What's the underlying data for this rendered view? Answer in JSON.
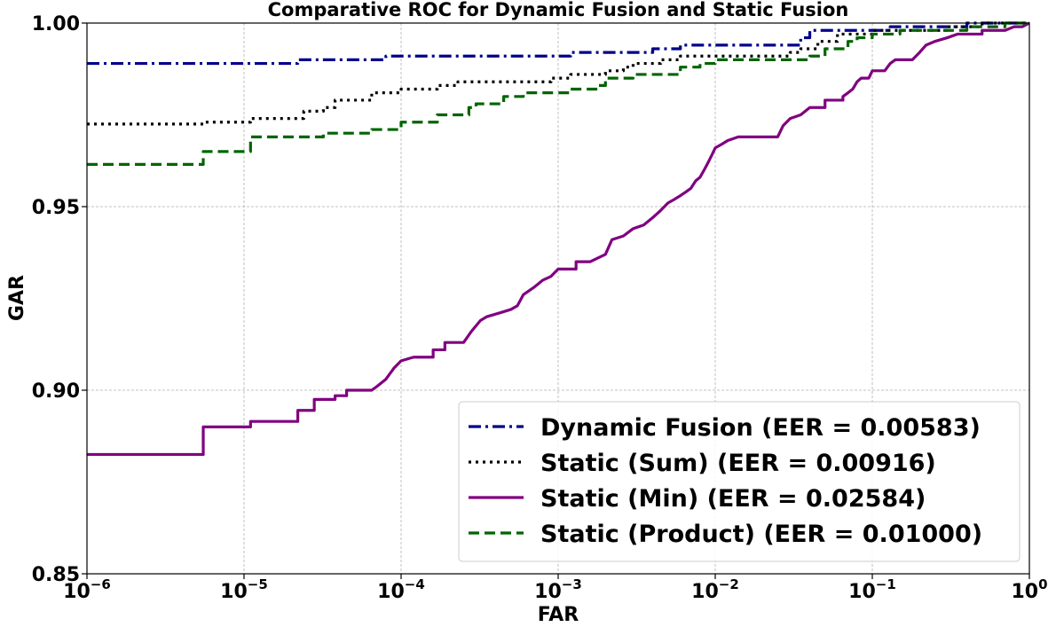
{
  "chart_data": {
    "type": "line",
    "title": "Comparative ROC for Dynamic Fusion and Static Fusion",
    "xlabel": "FAR",
    "ylabel": "GAR",
    "xscale": "log",
    "xlim": [
      1e-06,
      1
    ],
    "ylim": [
      0.85,
      1.0
    ],
    "x_ticks": [
      {
        "base": "10",
        "exp": "−6",
        "value": 1e-06
      },
      {
        "base": "10",
        "exp": "−5",
        "value": 1e-05
      },
      {
        "base": "10",
        "exp": "−4",
        "value": 0.0001
      },
      {
        "base": "10",
        "exp": "−3",
        "value": 0.001
      },
      {
        "base": "10",
        "exp": "−2",
        "value": 0.01
      },
      {
        "base": "10",
        "exp": "−1",
        "value": 0.1
      },
      {
        "base": "10",
        "exp": "0",
        "value": 1
      }
    ],
    "y_ticks": [
      {
        "label": "0.85",
        "value": 0.85
      },
      {
        "label": "0.90",
        "value": 0.9
      },
      {
        "label": "0.95",
        "value": 0.95
      },
      {
        "label": "1.00",
        "value": 1.0
      }
    ],
    "grid": true,
    "legend_position": "lower-right",
    "series": [
      {
        "name": "Dynamic Fusion (EER = 0.00583)",
        "color": "#00008b",
        "style": "dashdot",
        "points": [
          [
            1e-06,
            0.989
          ],
          [
            2.2e-05,
            0.989
          ],
          [
            2.2e-05,
            0.99
          ],
          [
            8e-05,
            0.99
          ],
          [
            8e-05,
            0.991
          ],
          [
            0.0012,
            0.991
          ],
          [
            0.0012,
            0.992
          ],
          [
            0.004,
            0.992
          ],
          [
            0.004,
            0.993
          ],
          [
            0.006,
            0.993
          ],
          [
            0.006,
            0.994
          ],
          [
            0.035,
            0.994
          ],
          [
            0.035,
            0.996
          ],
          [
            0.04,
            0.996
          ],
          [
            0.04,
            0.998
          ],
          [
            0.13,
            0.998
          ],
          [
            0.13,
            0.999
          ],
          [
            0.4,
            0.999
          ],
          [
            0.4,
            1.0
          ],
          [
            1,
            1.0
          ]
        ]
      },
      {
        "name": "Static (Sum) (EER = 0.00916)",
        "color": "#000000",
        "style": "dotted",
        "points": [
          [
            1e-06,
            0.9725
          ],
          [
            5.5e-06,
            0.9725
          ],
          [
            5.5e-06,
            0.973
          ],
          [
            1.1e-05,
            0.973
          ],
          [
            1.1e-05,
            0.974
          ],
          [
            2.4e-05,
            0.974
          ],
          [
            2.4e-05,
            0.976
          ],
          [
            3.2e-05,
            0.976
          ],
          [
            3.2e-05,
            0.977
          ],
          [
            3.8e-05,
            0.977
          ],
          [
            3.8e-05,
            0.979
          ],
          [
            6.5e-05,
            0.979
          ],
          [
            6.5e-05,
            0.981
          ],
          [
            0.0001,
            0.981
          ],
          [
            0.0001,
            0.982
          ],
          [
            0.00017,
            0.982
          ],
          [
            0.00017,
            0.983
          ],
          [
            0.00023,
            0.983
          ],
          [
            0.00023,
            0.984
          ],
          [
            0.0009,
            0.984
          ],
          [
            0.0009,
            0.985
          ],
          [
            0.0012,
            0.985
          ],
          [
            0.0012,
            0.986
          ],
          [
            0.002,
            0.986
          ],
          [
            0.002,
            0.987
          ],
          [
            0.0026,
            0.987
          ],
          [
            0.0026,
            0.988
          ],
          [
            0.003,
            0.988
          ],
          [
            0.003,
            0.989
          ],
          [
            0.0045,
            0.989
          ],
          [
            0.0045,
            0.99
          ],
          [
            0.006,
            0.99
          ],
          [
            0.006,
            0.991
          ],
          [
            0.03,
            0.991
          ],
          [
            0.03,
            0.992
          ],
          [
            0.035,
            0.992
          ],
          [
            0.035,
            0.993
          ],
          [
            0.045,
            0.993
          ],
          [
            0.045,
            0.995
          ],
          [
            0.06,
            0.995
          ],
          [
            0.06,
            0.997
          ],
          [
            0.1,
            0.997
          ],
          [
            0.1,
            0.998
          ],
          [
            0.3,
            0.998
          ],
          [
            0.3,
            0.999
          ],
          [
            0.5,
            0.999
          ],
          [
            0.5,
            1.0
          ],
          [
            1,
            1.0
          ]
        ]
      },
      {
        "name": "Static (Min) (EER = 0.02584)",
        "color": "#800080",
        "style": "solid",
        "points": [
          [
            1e-06,
            0.8825
          ],
          [
            5.5e-06,
            0.8825
          ],
          [
            5.5e-06,
            0.89
          ],
          [
            1.1e-05,
            0.89
          ],
          [
            1.1e-05,
            0.8915
          ],
          [
            2.2e-05,
            0.8915
          ],
          [
            2.2e-05,
            0.8945
          ],
          [
            2.8e-05,
            0.8945
          ],
          [
            2.8e-05,
            0.8975
          ],
          [
            3.8e-05,
            0.8975
          ],
          [
            3.8e-05,
            0.8985
          ],
          [
            4.5e-05,
            0.8985
          ],
          [
            4.5e-05,
            0.9
          ],
          [
            6.5e-05,
            0.9
          ],
          [
            7e-05,
            0.901
          ],
          [
            8e-05,
            0.903
          ],
          [
            9e-05,
            0.906
          ],
          [
            0.0001,
            0.908
          ],
          [
            0.00012,
            0.909
          ],
          [
            0.00016,
            0.909
          ],
          [
            0.00016,
            0.911
          ],
          [
            0.00019,
            0.911
          ],
          [
            0.00019,
            0.913
          ],
          [
            0.00025,
            0.913
          ],
          [
            0.00028,
            0.916
          ],
          [
            0.00032,
            0.919
          ],
          [
            0.00035,
            0.92
          ],
          [
            0.00042,
            0.921
          ],
          [
            0.0005,
            0.922
          ],
          [
            0.00055,
            0.923
          ],
          [
            0.0006,
            0.926
          ],
          [
            0.0007,
            0.928
          ],
          [
            0.0008,
            0.93
          ],
          [
            0.0009,
            0.931
          ],
          [
            0.001,
            0.933
          ],
          [
            0.0013,
            0.933
          ],
          [
            0.0013,
            0.935
          ],
          [
            0.0016,
            0.935
          ],
          [
            0.002,
            0.937
          ],
          [
            0.0022,
            0.941
          ],
          [
            0.0026,
            0.942
          ],
          [
            0.003,
            0.944
          ],
          [
            0.0035,
            0.945
          ],
          [
            0.004,
            0.947
          ],
          [
            0.0045,
            0.949
          ],
          [
            0.005,
            0.951
          ],
          [
            0.0055,
            0.952
          ],
          [
            0.006,
            0.953
          ],
          [
            0.0065,
            0.954
          ],
          [
            0.007,
            0.955
          ],
          [
            0.0075,
            0.957
          ],
          [
            0.008,
            0.958
          ],
          [
            0.0085,
            0.96
          ],
          [
            0.009,
            0.962
          ],
          [
            0.0095,
            0.964
          ],
          [
            0.01,
            0.966
          ],
          [
            0.011,
            0.967
          ],
          [
            0.012,
            0.968
          ],
          [
            0.014,
            0.969
          ],
          [
            0.025,
            0.969
          ],
          [
            0.027,
            0.972
          ],
          [
            0.03,
            0.974
          ],
          [
            0.035,
            0.975
          ],
          [
            0.04,
            0.977
          ],
          [
            0.05,
            0.977
          ],
          [
            0.05,
            0.979
          ],
          [
            0.065,
            0.979
          ],
          [
            0.065,
            0.98
          ],
          [
            0.07,
            0.981
          ],
          [
            0.075,
            0.982
          ],
          [
            0.08,
            0.984
          ],
          [
            0.085,
            0.985
          ],
          [
            0.095,
            0.985
          ],
          [
            0.1,
            0.987
          ],
          [
            0.12,
            0.987
          ],
          [
            0.13,
            0.989
          ],
          [
            0.14,
            0.99
          ],
          [
            0.18,
            0.99
          ],
          [
            0.2,
            0.992
          ],
          [
            0.22,
            0.994
          ],
          [
            0.25,
            0.995
          ],
          [
            0.3,
            0.996
          ],
          [
            0.35,
            0.997
          ],
          [
            0.5,
            0.997
          ],
          [
            0.5,
            0.998
          ],
          [
            0.7,
            0.998
          ],
          [
            0.8,
            0.999
          ],
          [
            0.9,
            0.999
          ],
          [
            1,
            1.0
          ]
        ]
      },
      {
        "name": "Static (Product) (EER = 0.01000)",
        "color": "#006400",
        "style": "dashed",
        "points": [
          [
            1e-06,
            0.9615
          ],
          [
            5.5e-06,
            0.9615
          ],
          [
            5.5e-06,
            0.965
          ],
          [
            1.1e-05,
            0.965
          ],
          [
            1.1e-05,
            0.969
          ],
          [
            3.2e-05,
            0.969
          ],
          [
            3.2e-05,
            0.97
          ],
          [
            6.5e-05,
            0.97
          ],
          [
            6.5e-05,
            0.971
          ],
          [
            0.0001,
            0.971
          ],
          [
            0.0001,
            0.973
          ],
          [
            0.00017,
            0.973
          ],
          [
            0.00017,
            0.975
          ],
          [
            0.00027,
            0.975
          ],
          [
            0.00027,
            0.977
          ],
          [
            0.0003,
            0.977
          ],
          [
            0.0003,
            0.978
          ],
          [
            0.00045,
            0.978
          ],
          [
            0.00045,
            0.98
          ],
          [
            0.0006,
            0.98
          ],
          [
            0.0006,
            0.981
          ],
          [
            0.0012,
            0.981
          ],
          [
            0.0012,
            0.982
          ],
          [
            0.0018,
            0.982
          ],
          [
            0.0018,
            0.983
          ],
          [
            0.002,
            0.983
          ],
          [
            0.002,
            0.985
          ],
          [
            0.003,
            0.985
          ],
          [
            0.003,
            0.986
          ],
          [
            0.006,
            0.986
          ],
          [
            0.006,
            0.988
          ],
          [
            0.008,
            0.988
          ],
          [
            0.008,
            0.989
          ],
          [
            0.01,
            0.989
          ],
          [
            0.01,
            0.99
          ],
          [
            0.04,
            0.99
          ],
          [
            0.04,
            0.991
          ],
          [
            0.05,
            0.991
          ],
          [
            0.05,
            0.993
          ],
          [
            0.07,
            0.993
          ],
          [
            0.07,
            0.995
          ],
          [
            0.08,
            0.995
          ],
          [
            0.08,
            0.996
          ],
          [
            0.1,
            0.996
          ],
          [
            0.1,
            0.997
          ],
          [
            0.15,
            0.997
          ],
          [
            0.15,
            0.998
          ],
          [
            0.4,
            0.998
          ],
          [
            0.4,
            0.999
          ],
          [
            0.7,
            0.999
          ],
          [
            0.7,
            1.0
          ],
          [
            1,
            1.0
          ]
        ]
      }
    ]
  }
}
